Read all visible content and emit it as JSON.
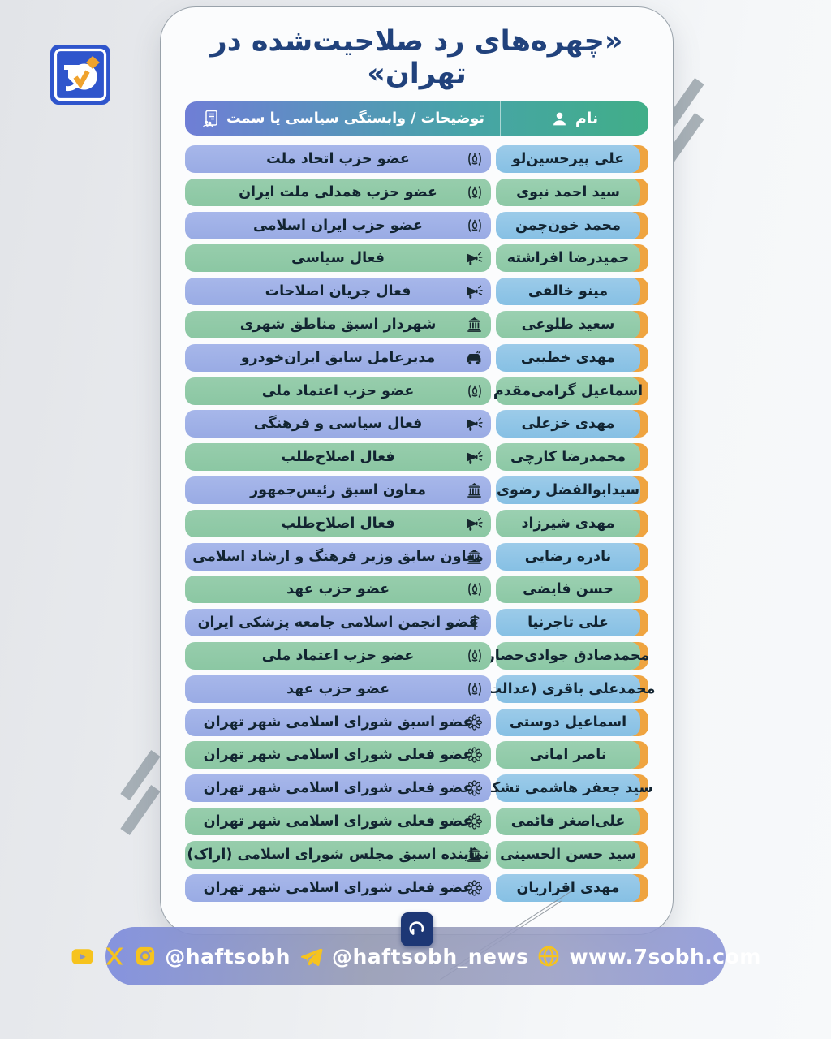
{
  "page": {
    "title": "«چهره‌های رد صلاحیت‌شده در تهران»"
  },
  "brand": {
    "corner_logo": "haftsobh-logo",
    "badge_logo": "sobh-mark"
  },
  "table": {
    "header": {
      "name_label": "نام",
      "name_icon": "person-icon",
      "desc_label": "توضیحات / وابستگی سیاسی یا سمت",
      "desc_icon": "resume-icon"
    },
    "rows": [
      {
        "name": "علی پیرحسین‌لو",
        "desc": "عضو حزب اتحاد ملت",
        "icon": "iran-emblem-icon",
        "tone": "blue"
      },
      {
        "name": "سید احمد نبوی",
        "desc": "عضو حزب همدلی ملت ایران",
        "icon": "iran-emblem-icon",
        "tone": "green"
      },
      {
        "name": "محمد خون‌چمن",
        "desc": "عضو حزب ایران اسلامی",
        "icon": "iran-emblem-icon",
        "tone": "blue"
      },
      {
        "name": "حمیدرضا افراشته",
        "desc": "فعال سیاسی",
        "icon": "megaphone-icon",
        "tone": "green"
      },
      {
        "name": "مینو خالقی",
        "desc": "فعال جریان اصلاحات",
        "icon": "megaphone-icon",
        "tone": "blue"
      },
      {
        "name": "سعید طلوعی",
        "desc": "شهردار اسبق مناطق شهری",
        "icon": "building-icon",
        "tone": "green"
      },
      {
        "name": "مهدی خطیبی",
        "desc": "مدیرعامل سابق ایران‌خودرو",
        "icon": "car-icon",
        "tone": "blue"
      },
      {
        "name": "اسماعیل گرامی‌مقدم",
        "desc": "عضو حزب اعتماد ملی",
        "icon": "iran-emblem-icon",
        "tone": "green"
      },
      {
        "name": "مهدی خزعلی",
        "desc": "فعال سیاسی و فرهنگی",
        "icon": "megaphone-icon",
        "tone": "blue"
      },
      {
        "name": "محمدرضا کارچی",
        "desc": "فعال اصلاح‌طلب",
        "icon": "megaphone-icon",
        "tone": "green"
      },
      {
        "name": "سیدابوالفضل رضوی",
        "desc": "معاون اسبق رئیس‌جمهور",
        "icon": "building-icon",
        "tone": "blue"
      },
      {
        "name": "مهدی شیرزاد",
        "desc": "فعال اصلاح‌طلب",
        "icon": "megaphone-icon",
        "tone": "green"
      },
      {
        "name": "نادره رضایی",
        "desc": "معاون سابق وزیر فرهنگ و ارشاد اسلامی",
        "icon": "building-icon",
        "tone": "blue"
      },
      {
        "name": "حسن فایضی",
        "desc": "عضو حزب عهد",
        "icon": "iran-emblem-icon",
        "tone": "green"
      },
      {
        "name": "علی تاجرنیا",
        "desc": "عضو انجمن اسلامی جامعه پزشکی ایران",
        "icon": "medical-icon",
        "tone": "blue"
      },
      {
        "name": "محمدصادق جوادی‌حصار",
        "desc": "عضو حزب اعتماد ملی",
        "icon": "iran-emblem-icon",
        "tone": "green"
      },
      {
        "name": "محمدعلی باقری (عدالت)",
        "desc": "عضو حزب عهد",
        "icon": "iran-emblem-icon",
        "tone": "blue"
      },
      {
        "name": "اسماعیل دوستی",
        "desc": "عضو اسبق شورای اسلامی شهر تهران",
        "icon": "council-icon",
        "tone": "blue"
      },
      {
        "name": "ناصر امانی",
        "desc": "عضو فعلی شورای اسلامی شهر تهران",
        "icon": "council-icon",
        "tone": "green"
      },
      {
        "name": "سید جعفر هاشمی تشکر",
        "desc": "عضو فعلی شورای اسلامی شهر تهران",
        "icon": "council-icon",
        "tone": "blue"
      },
      {
        "name": "علی‌اصغر قائمی",
        "desc": "عضو فعلی شورای اسلامی شهر تهران",
        "icon": "council-icon",
        "tone": "green"
      },
      {
        "name": "سید حسن الحسینی",
        "desc": "نماینده اسبق مجلس شورای اسلامی (اراک)",
        "icon": "building-icon",
        "tone": "green"
      },
      {
        "name": "مهدی اقراریان",
        "desc": "عضو فعلی شورای اسلامی شهر تهران",
        "icon": "council-icon",
        "tone": "blue"
      }
    ]
  },
  "footer": {
    "social_icons": [
      "youtube-icon",
      "x-icon",
      "instagram-icon"
    ],
    "handle_main": "@haftsobh",
    "telegram_icon": "telegram-icon",
    "handle_news": "@haftsobh_news",
    "globe_icon": "globe-icon",
    "website": "www.7sobh.com"
  },
  "colors": {
    "title": "#21427c",
    "header_green": "#41ae88",
    "header_blue": "#6f7ed6",
    "row_blue_name": "#8ec4e7",
    "row_blue_desc": "#9fafe7",
    "row_green_name": "#92ccab",
    "row_green_desc": "#90caa7",
    "orange_tab": "#efa440",
    "footer_pill": "#8e97cf",
    "accent_yellow": "#f6c31e",
    "badge_navy": "#1d3775"
  }
}
